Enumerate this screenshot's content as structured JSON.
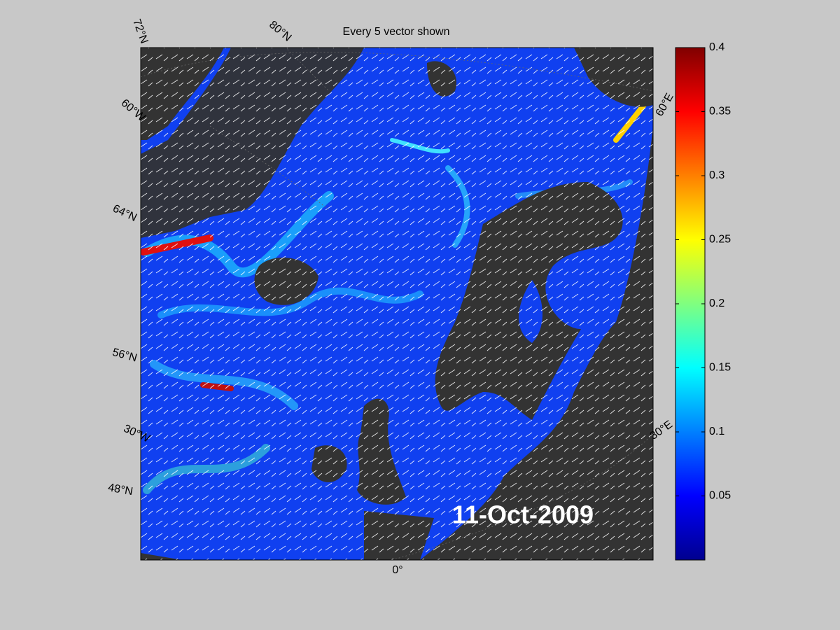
{
  "title": "Every 5 vector shown",
  "map": {
    "graticule_labels": [
      "72°N",
      "80°N",
      "60°W",
      "64°N",
      "56°N",
      "30°W",
      "48°N",
      "0°",
      "60°E",
      "30°E"
    ],
    "date": "11-Oct-2009"
  },
  "colorbar": {
    "lim": [
      0,
      0.4
    ],
    "ticks": [
      0.05,
      0.1,
      0.15,
      0.2,
      0.25,
      0.3,
      0.35,
      0.4
    ]
  }
}
